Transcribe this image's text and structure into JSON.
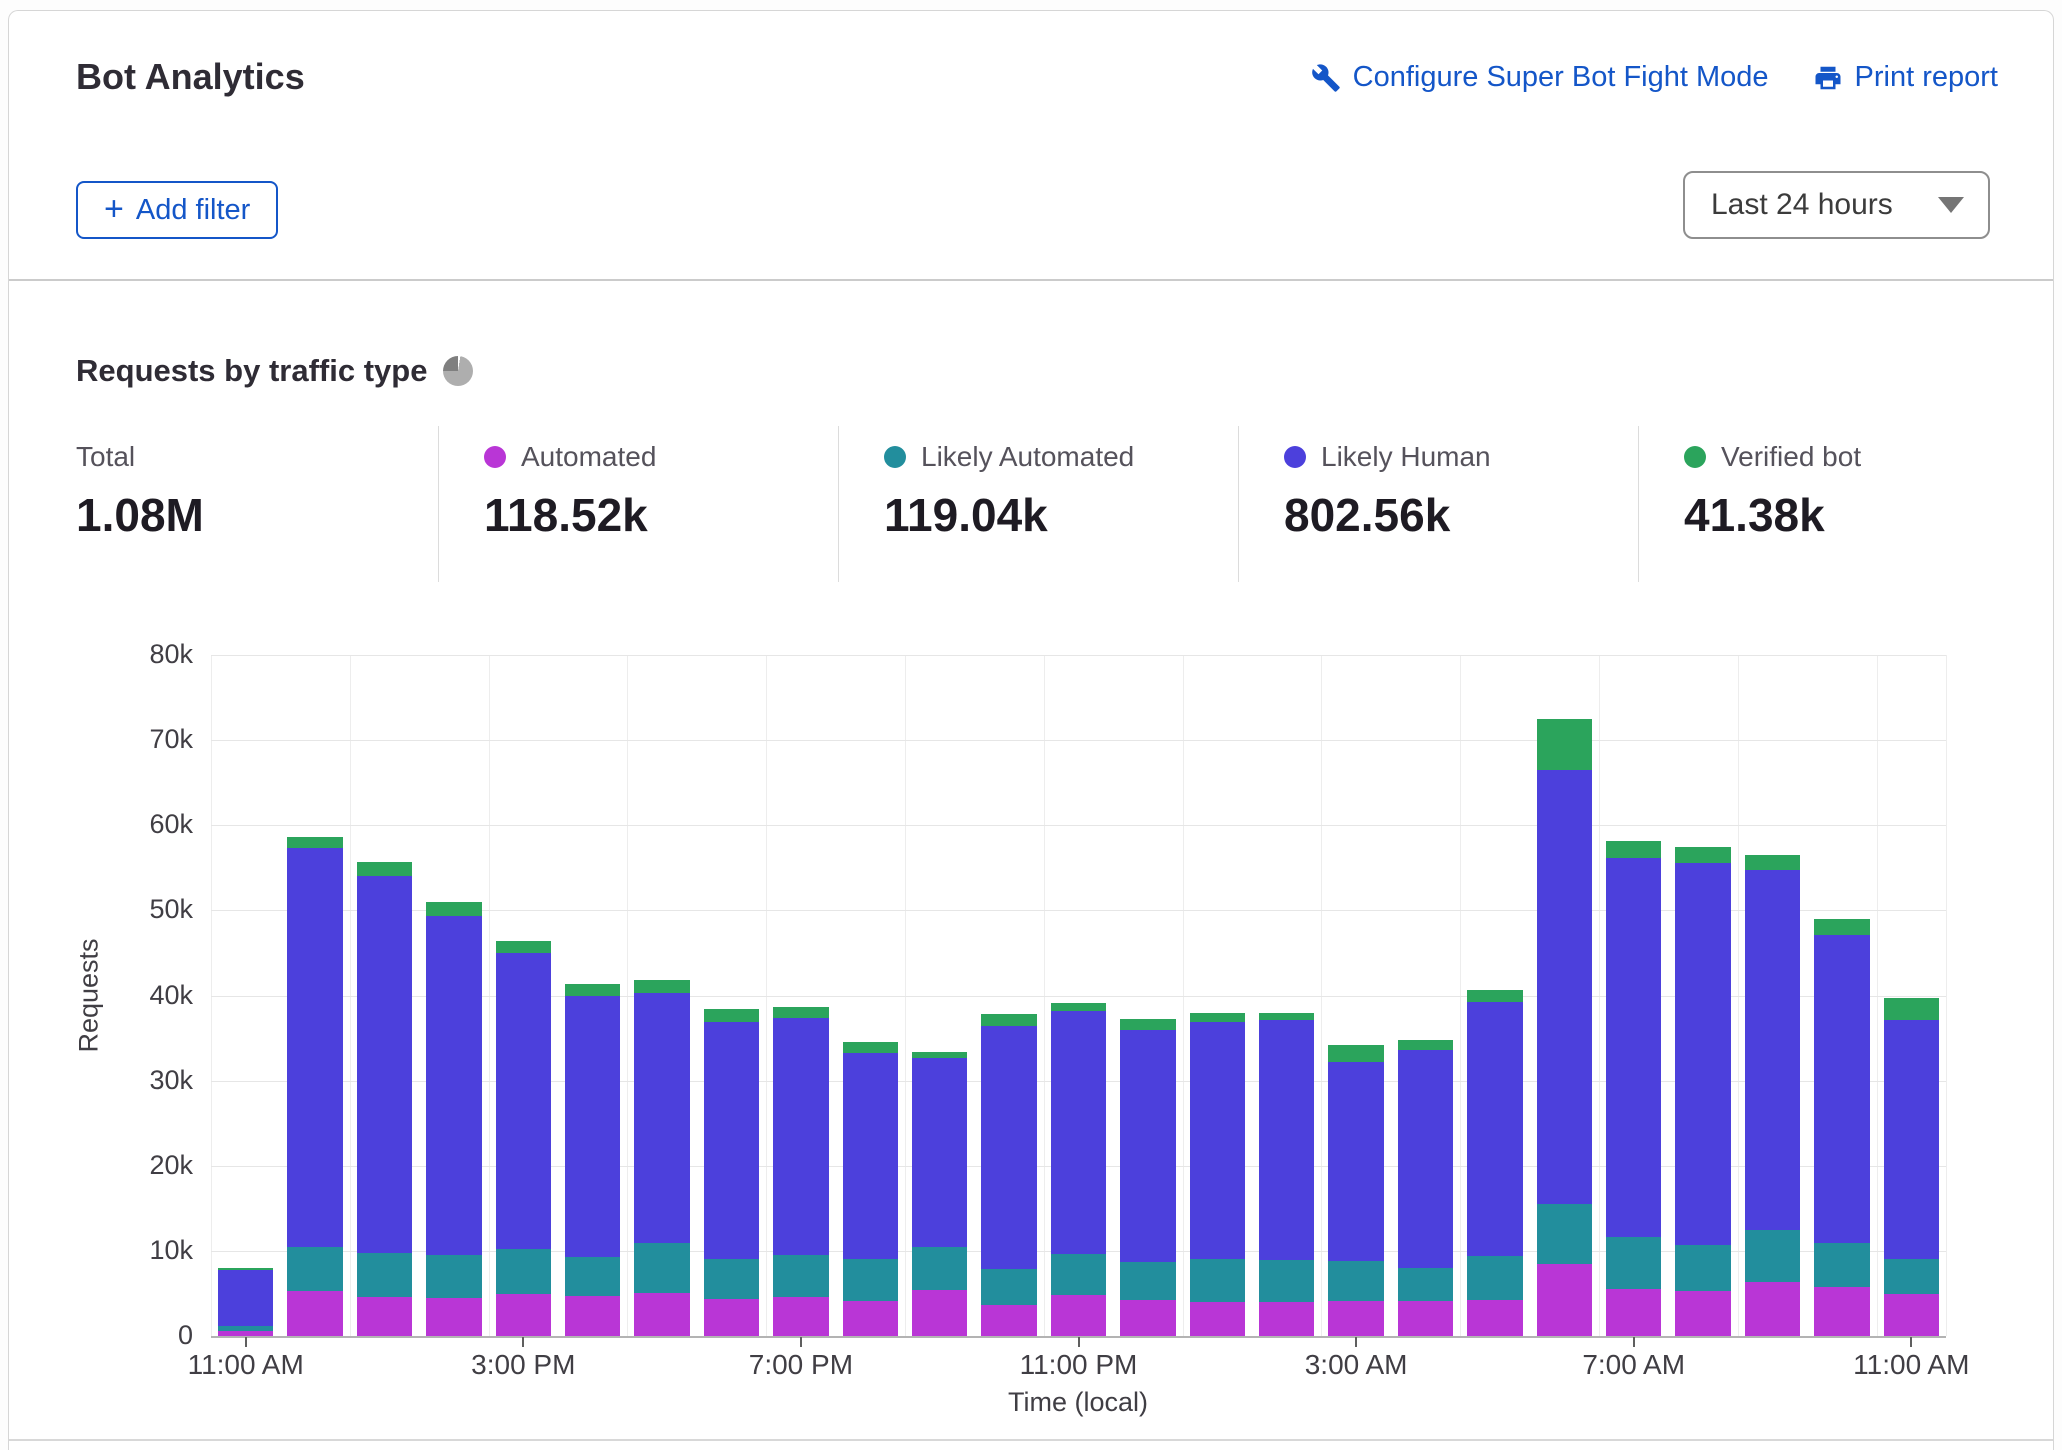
{
  "header": {
    "title": "Bot Analytics",
    "configure_link": "Configure Super Bot Fight Mode",
    "print_link": "Print report",
    "add_filter_plus": "+",
    "add_filter_label": "Add filter",
    "time_range": "Last 24 hours"
  },
  "icons": {
    "configure": "wrench-icon",
    "print": "printer-icon",
    "heading": "pie-chart-icon",
    "add_filter": "plus-icon",
    "time_range": "chevron-down-icon"
  },
  "section": {
    "heading": "Requests by traffic type"
  },
  "stats": [
    {
      "label": "Total",
      "value": "1.08M"
    },
    {
      "label": "Automated",
      "value": "118.52k",
      "dot_color": "#b936d6"
    },
    {
      "label": "Likely Automated",
      "value": "119.04k",
      "dot_color": "#228e9d"
    },
    {
      "label": "Likely Human",
      "value": "802.56k",
      "dot_color": "#4c40dc"
    },
    {
      "label": "Verified bot",
      "value": "41.38k",
      "dot_color": "#2ba45c"
    }
  ],
  "chart_data": {
    "type": "bar",
    "stacked": true,
    "title": "Requests by traffic type",
    "xlabel": "Time (local)",
    "ylabel": "Requests",
    "ylim": [
      0,
      80000
    ],
    "grid": true,
    "y_ticks": [
      "0",
      "10k",
      "20k",
      "30k",
      "40k",
      "50k",
      "60k",
      "70k",
      "80k"
    ],
    "x_tick_every": 4,
    "x_tick_labels": [
      "11:00 AM",
      "3:00 PM",
      "7:00 PM",
      "11:00 PM",
      "3:00 AM",
      "7:00 AM",
      "11:00 AM"
    ],
    "categories": [
      "11:00 AM",
      "12:00 PM",
      "1:00 PM",
      "2:00 PM",
      "3:00 PM",
      "4:00 PM",
      "5:00 PM",
      "6:00 PM",
      "7:00 PM",
      "8:00 PM",
      "9:00 PM",
      "10:00 PM",
      "11:00 PM",
      "12:00 AM",
      "1:00 AM",
      "2:00 AM",
      "3:00 AM",
      "4:00 AM",
      "5:00 AM",
      "6:00 AM",
      "7:00 AM",
      "8:00 AM",
      "9:00 AM",
      "10:00 AM",
      "11:00 AM"
    ],
    "series": [
      {
        "name": "Automated",
        "color": "#b936d6",
        "values": [
          600,
          5300,
          4600,
          4500,
          4900,
          4700,
          5100,
          4300,
          4600,
          4100,
          5400,
          3600,
          4800,
          4200,
          4000,
          4000,
          4100,
          4100,
          4200,
          8500,
          5500,
          5300,
          6300,
          5800,
          4900
        ]
      },
      {
        "name": "Likely Automated",
        "color": "#228e9d",
        "values": [
          600,
          5100,
          5200,
          5000,
          5300,
          4600,
          5800,
          4700,
          4900,
          5000,
          5100,
          4300,
          4800,
          4500,
          5000,
          4900,
          4700,
          3900,
          5200,
          7000,
          6100,
          5400,
          6100,
          5100,
          4100
        ]
      },
      {
        "name": "Likely Human",
        "color": "#4c40dc",
        "values": [
          6500,
          46900,
          44300,
          39900,
          34800,
          30700,
          29400,
          27900,
          27900,
          24200,
          22200,
          28500,
          28600,
          27300,
          27900,
          28200,
          23400,
          25600,
          29800,
          51000,
          44500,
          44900,
          42300,
          36200,
          28100
        ]
      },
      {
        "name": "Verified bot",
        "color": "#2ba45c",
        "values": [
          300,
          1300,
          1600,
          1600,
          1400,
          1300,
          1500,
          1500,
          1300,
          1200,
          700,
          1400,
          900,
          1300,
          1000,
          900,
          2000,
          1200,
          1400,
          6000,
          2000,
          1800,
          1800,
          1900,
          2600
        ]
      }
    ]
  }
}
